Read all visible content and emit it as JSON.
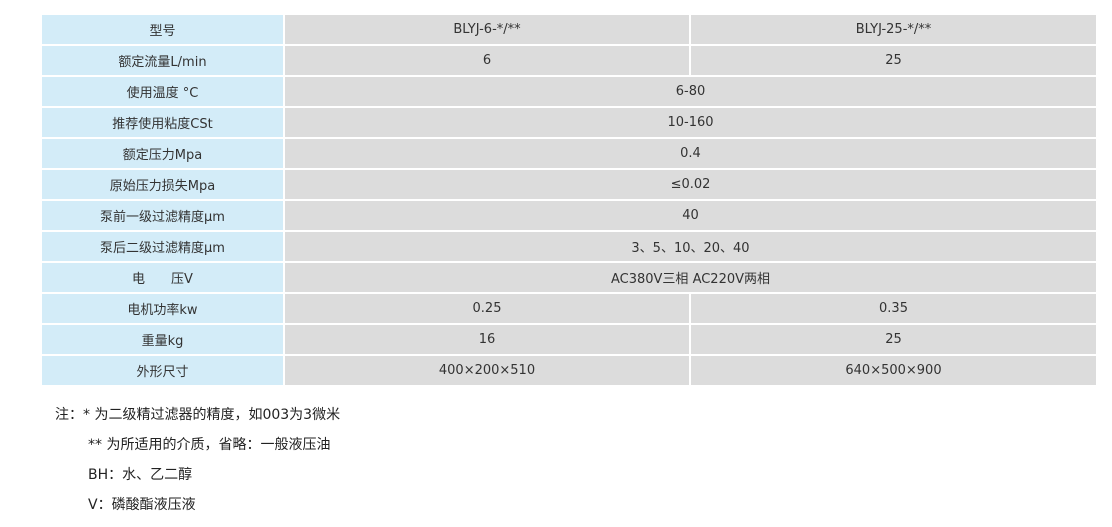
{
  "table": {
    "rows": [
      {
        "label": "型号",
        "values": [
          "BLYJ-6-*/**",
          "BLYJ-25-*/**"
        ]
      },
      {
        "label": "额定流量L/min",
        "values": [
          "6",
          "25"
        ]
      },
      {
        "label": "使用温度 °C",
        "values": [
          "6-80"
        ]
      },
      {
        "label": "推荐使用粘度CSt",
        "values": [
          "10-160"
        ]
      },
      {
        "label": "额定压力Mpa",
        "values": [
          "0.4"
        ]
      },
      {
        "label": "原始压力损失Mpa",
        "values": [
          "≤0.02"
        ]
      },
      {
        "label": "泵前一级过滤精度μm",
        "values": [
          "40"
        ]
      },
      {
        "label": "泵后二级过滤精度μm",
        "values": [
          "3、5、10、20、40"
        ]
      },
      {
        "label": "电　　压V",
        "values": [
          "AC380V三相  AC220V两相"
        ]
      },
      {
        "label": "电机功率kw",
        "values": [
          "0.25",
          "0.35"
        ]
      },
      {
        "label": "重量kg",
        "values": [
          "16",
          "25"
        ]
      },
      {
        "label": "外形尺寸",
        "values": [
          "400×200×510",
          "640×500×900"
        ]
      }
    ]
  },
  "notes": [
    "注：* 为二级精过滤器的精度，如003为3微米",
    "** 为所适用的介质，省略：一般液压油",
    "BH：水、乙二醇",
    "V：磷酸酯液压液"
  ],
  "colors": {
    "label_bg": "#d3ecf8",
    "cell_bg": "#dcdcdc"
  }
}
